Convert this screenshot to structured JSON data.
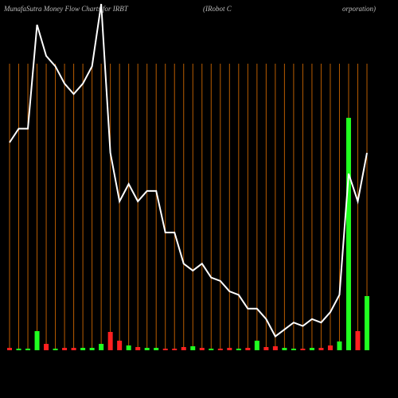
{
  "chart_data": {
    "type": "line_bar",
    "title_parts": [
      "MunafaSutra  Money Flow  Charts for IRBT",
      "(IRobot C",
      "orporation)"
    ],
    "categories": [
      null,
      null,
      null,
      null,
      null,
      null,
      null,
      null,
      null,
      null,
      null,
      null,
      null,
      null,
      null,
      null,
      null,
      null,
      null,
      null,
      null,
      null,
      null,
      null,
      null,
      null,
      null,
      null,
      null,
      null,
      null,
      null,
      null,
      null,
      null,
      null,
      null,
      null,
      null,
      null
    ],
    "ylim": [
      0,
      100
    ],
    "y2lim": [
      0,
      435
    ],
    "grid_color": "#b85c00",
    "series": [
      {
        "type": "line",
        "color": "#ffffff",
        "values": [
          60,
          64,
          64,
          94,
          85,
          82,
          77,
          74,
          77,
          82,
          100,
          57,
          43,
          48,
          43,
          46,
          46,
          34,
          34,
          25,
          23,
          25,
          21,
          20,
          17,
          16,
          12,
          12,
          9,
          4,
          6,
          8,
          7,
          9,
          8,
          11,
          16,
          51,
          43,
          57
        ]
      },
      {
        "type": "bar",
        "axis": "y2",
        "colors": [
          "#ff2020",
          "#20ff20",
          "#20ff20",
          "#20ff20",
          "#ff2020",
          "#20ff20",
          "#ff2020",
          "#ff2020",
          "#20ff20",
          "#20ff20",
          "#20ff20",
          "#ff2020",
          "#ff2020",
          "#20ff20",
          "#ff2020",
          "#20ff20",
          "#20ff20",
          "#ff2020",
          "#ff2020",
          "#ff2020",
          "#20ff20",
          "#ff2020",
          "#20ff20",
          "#ff2020",
          "#ff2020",
          "#20ff20",
          "#ff2020",
          "#20ff20",
          "#ff2020",
          "#ff2020",
          "#20ff20",
          "#20ff20",
          "#ff2020",
          "#20ff20",
          "#ff2020",
          "#ff2020",
          "#20ff20",
          "#20ff20",
          "#ff2020",
          "#20ff20"
        ],
        "values": [
          3,
          2,
          2,
          24,
          8,
          2,
          3,
          3,
          3,
          3,
          8,
          23,
          12,
          6,
          4,
          3,
          3,
          2,
          2,
          4,
          5,
          3,
          2,
          2,
          3,
          2,
          3,
          12,
          4,
          5,
          3,
          2,
          2,
          3,
          3,
          6,
          11,
          292,
          24,
          68
        ]
      }
    ]
  }
}
